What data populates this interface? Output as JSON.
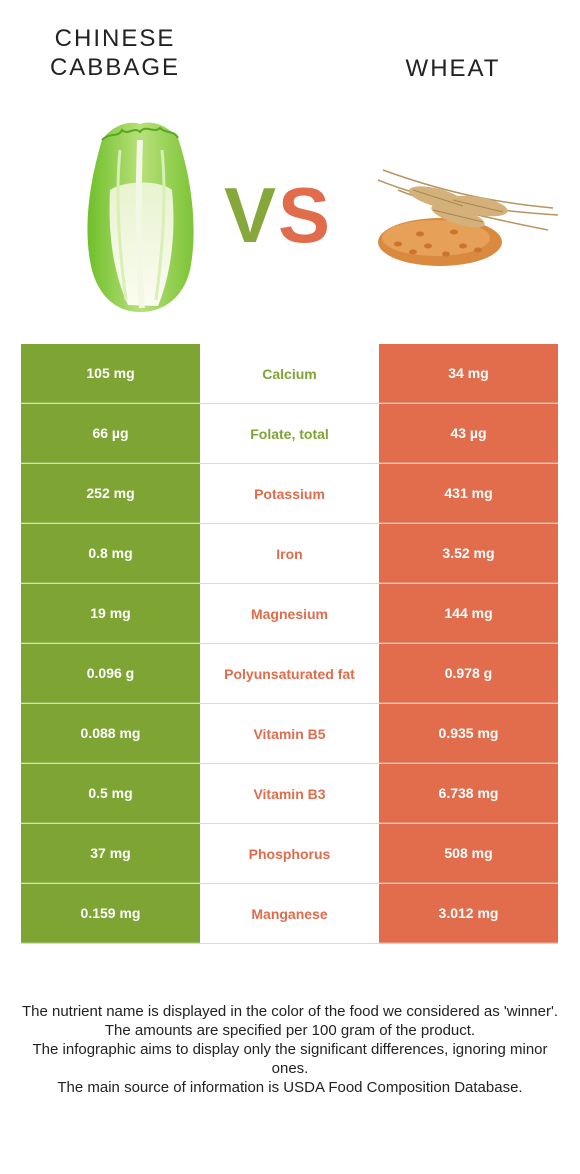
{
  "header": {
    "left_food": "CHINESE\nCABBAGE",
    "left_food_line1": "CHINESE",
    "left_food_line2": "CABBAGE",
    "right_food": "WHEAT",
    "vs_v": "V",
    "vs_s": "S"
  },
  "colors": {
    "left_accent": "#7ea534",
    "right_accent": "#e26d4d"
  },
  "rows": [
    {
      "left": "105 mg",
      "nutrient": "Calcium",
      "right": "34 mg",
      "winner": "left"
    },
    {
      "left": "66 µg",
      "nutrient": "Folate, total",
      "right": "43 µg",
      "winner": "left"
    },
    {
      "left": "252 mg",
      "nutrient": "Potassium",
      "right": "431 mg",
      "winner": "right"
    },
    {
      "left": "0.8 mg",
      "nutrient": "Iron",
      "right": "3.52 mg",
      "winner": "right"
    },
    {
      "left": "19 mg",
      "nutrient": "Magnesium",
      "right": "144 mg",
      "winner": "right"
    },
    {
      "left": "0.096 g",
      "nutrient": "Polyunsaturated fat",
      "right": "0.978 g",
      "winner": "right"
    },
    {
      "left": "0.088 mg",
      "nutrient": "Vitamin B5",
      "right": "0.935 mg",
      "winner": "right"
    },
    {
      "left": "0.5 mg",
      "nutrient": "Vitamin B3",
      "right": "6.738 mg",
      "winner": "right"
    },
    {
      "left": "37 mg",
      "nutrient": "Phosphorus",
      "right": "508 mg",
      "winner": "right"
    },
    {
      "left": "0.159 mg",
      "nutrient": "Manganese",
      "right": "3.012 mg",
      "winner": "right"
    }
  ],
  "footer": {
    "line1": "The nutrient name is displayed in the color of the food we considered as 'winner'.",
    "line2": "The amounts are specified per 100 gram of the product.",
    "line3": "The infographic aims to display only the significant differences, ignoring minor ones.",
    "line4": "The main source of information is USDA Food Composition Database."
  }
}
